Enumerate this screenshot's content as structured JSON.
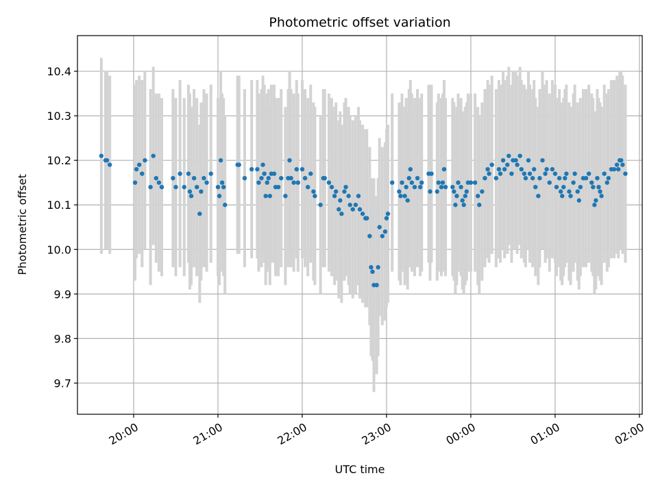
{
  "chart_data": {
    "type": "scatter",
    "title": "Photometric offset variation",
    "xlabel": "UTC time",
    "ylabel": "Photometric offset",
    "grid": true,
    "legend": "none",
    "x_start": "19:20",
    "x_end": "02:02",
    "ylim": [
      9.63,
      10.48
    ],
    "x_ticks": [
      "20:00",
      "21:00",
      "22:00",
      "23:00",
      "00:00",
      "01:00",
      "02:00"
    ],
    "y_ticks": [
      9.7,
      9.8,
      9.9,
      10.0,
      10.1,
      10.2,
      10.3,
      10.4
    ],
    "colors": {
      "points": "#1f77b4",
      "error_bars": "#d3d3d3",
      "grid": "#b0b0b0"
    },
    "points": [
      [
        "19:37",
        10.21,
        0.22
      ],
      [
        "19:40",
        10.2,
        0.2
      ],
      [
        "19:41",
        10.2,
        0.2
      ],
      [
        "19:43",
        10.19,
        0.2
      ],
      [
        "20:01",
        10.15,
        0.22
      ],
      [
        "20:02",
        10.18,
        0.2
      ],
      [
        "20:04",
        10.19,
        0.2
      ],
      [
        "20:06",
        10.17,
        0.21
      ],
      [
        "20:08",
        10.2,
        0.2
      ],
      [
        "20:12",
        10.14,
        0.22
      ],
      [
        "20:14",
        10.21,
        0.2
      ],
      [
        "20:16",
        10.16,
        0.19
      ],
      [
        "20:18",
        10.15,
        0.2
      ],
      [
        "20:20",
        10.14,
        0.2
      ],
      [
        "20:28",
        10.16,
        0.2
      ],
      [
        "20:30",
        10.14,
        0.2
      ],
      [
        "20:33",
        10.17,
        0.21
      ],
      [
        "20:36",
        10.14,
        0.2
      ],
      [
        "20:39",
        10.17,
        0.2
      ],
      [
        "20:40",
        10.13,
        0.22
      ],
      [
        "20:41",
        10.12,
        0.2
      ],
      [
        "20:43",
        10.16,
        0.2
      ],
      [
        "20:45",
        10.14,
        0.2
      ],
      [
        "20:47",
        10.08,
        0.2
      ],
      [
        "20:48",
        10.13,
        0.2
      ],
      [
        "20:50",
        10.16,
        0.2
      ],
      [
        "20:52",
        10.15,
        0.2
      ],
      [
        "20:55",
        10.17,
        0.2
      ],
      [
        "21:00",
        10.14,
        0.2
      ],
      [
        "21:01",
        10.12,
        0.2
      ],
      [
        "21:02",
        10.2,
        0.2
      ],
      [
        "21:03",
        10.15,
        0.2
      ],
      [
        "21:04",
        10.14,
        0.2
      ],
      [
        "21:05",
        10.1,
        0.2
      ],
      [
        "21:14",
        10.19,
        0.2
      ],
      [
        "21:15",
        10.19,
        0.2
      ],
      [
        "21:19",
        10.16,
        0.2
      ],
      [
        "21:24",
        10.18,
        0.2
      ],
      [
        "21:28",
        10.18,
        0.2
      ],
      [
        "21:29",
        10.15,
        0.2
      ],
      [
        "21:31",
        10.16,
        0.2
      ],
      [
        "21:32",
        10.19,
        0.2
      ],
      [
        "21:33",
        10.17,
        0.2
      ],
      [
        "21:34",
        10.12,
        0.2
      ],
      [
        "21:35",
        10.15,
        0.2
      ],
      [
        "21:36",
        10.16,
        0.2
      ],
      [
        "21:37",
        10.12,
        0.2
      ],
      [
        "21:38",
        10.17,
        0.2
      ],
      [
        "21:40",
        10.17,
        0.2
      ],
      [
        "21:41",
        10.14,
        0.2
      ],
      [
        "21:43",
        10.14,
        0.2
      ],
      [
        "21:45",
        10.16,
        0.2
      ],
      [
        "21:48",
        10.12,
        0.2
      ],
      [
        "21:50",
        10.16,
        0.2
      ],
      [
        "21:51",
        10.2,
        0.2
      ],
      [
        "21:52",
        10.16,
        0.2
      ],
      [
        "21:54",
        10.15,
        0.2
      ],
      [
        "21:56",
        10.18,
        0.2
      ],
      [
        "21:57",
        10.15,
        0.2
      ],
      [
        "22:00",
        10.18,
        0.2
      ],
      [
        "22:02",
        10.16,
        0.2
      ],
      [
        "22:04",
        10.14,
        0.2
      ],
      [
        "22:06",
        10.17,
        0.2
      ],
      [
        "22:08",
        10.13,
        0.2
      ],
      [
        "22:09",
        10.12,
        0.2
      ],
      [
        "22:13",
        10.1,
        0.2
      ],
      [
        "22:15",
        10.16,
        0.2
      ],
      [
        "22:16",
        10.16,
        0.2
      ],
      [
        "22:19",
        10.15,
        0.2
      ],
      [
        "22:21",
        10.14,
        0.2
      ],
      [
        "22:23",
        10.12,
        0.2
      ],
      [
        "22:24",
        10.13,
        0.2
      ],
      [
        "22:26",
        10.09,
        0.2
      ],
      [
        "22:27",
        10.11,
        0.2
      ],
      [
        "22:28",
        10.08,
        0.2
      ],
      [
        "22:30",
        10.13,
        0.2
      ],
      [
        "22:31",
        10.14,
        0.2
      ],
      [
        "22:33",
        10.12,
        0.2
      ],
      [
        "22:34",
        10.1,
        0.2
      ],
      [
        "22:36",
        10.09,
        0.2
      ],
      [
        "22:38",
        10.1,
        0.2
      ],
      [
        "22:40",
        10.12,
        0.2
      ],
      [
        "22:41",
        10.09,
        0.2
      ],
      [
        "22:43",
        10.08,
        0.2
      ],
      [
        "22:45",
        10.07,
        0.2
      ],
      [
        "22:46",
        10.07,
        0.2
      ],
      [
        "22:48",
        10.03,
        0.2
      ],
      [
        "22:49",
        9.96,
        0.2
      ],
      [
        "22:50",
        9.95,
        0.2
      ],
      [
        "22:51",
        9.92,
        0.24
      ],
      [
        "22:53",
        9.92,
        0.2
      ],
      [
        "22:54",
        9.96,
        0.2
      ],
      [
        "22:55",
        10.05,
        0.2
      ],
      [
        "22:57",
        10.03,
        0.2
      ],
      [
        "22:59",
        10.04,
        0.2
      ],
      [
        "23:00",
        10.07,
        0.2
      ],
      [
        "23:01",
        10.08,
        0.2
      ],
      [
        "23:04",
        10.15,
        0.2
      ],
      [
        "23:09",
        10.13,
        0.2
      ],
      [
        "23:10",
        10.12,
        0.2
      ],
      [
        "23:11",
        10.15,
        0.2
      ],
      [
        "23:13",
        10.12,
        0.2
      ],
      [
        "23:14",
        10.14,
        0.2
      ],
      [
        "23:15",
        10.11,
        0.2
      ],
      [
        "23:16",
        10.16,
        0.2
      ],
      [
        "23:17",
        10.18,
        0.2
      ],
      [
        "23:18",
        10.15,
        0.2
      ],
      [
        "23:20",
        10.14,
        0.2
      ],
      [
        "23:22",
        10.16,
        0.2
      ],
      [
        "23:24",
        10.14,
        0.2
      ],
      [
        "23:25",
        10.15,
        0.2
      ],
      [
        "23:30",
        10.17,
        0.2
      ],
      [
        "23:31",
        10.13,
        0.2
      ],
      [
        "23:32",
        10.17,
        0.2
      ],
      [
        "23:36",
        10.13,
        0.2
      ],
      [
        "23:37",
        10.15,
        0.2
      ],
      [
        "23:39",
        10.14,
        0.2
      ],
      [
        "23:40",
        10.15,
        0.2
      ],
      [
        "23:41",
        10.18,
        0.2
      ],
      [
        "23:42",
        10.14,
        0.2
      ],
      [
        "23:47",
        10.14,
        0.2
      ],
      [
        "23:48",
        10.13,
        0.2
      ],
      [
        "23:49",
        10.1,
        0.2
      ],
      [
        "23:50",
        10.12,
        0.2
      ],
      [
        "23:51",
        10.15,
        0.2
      ],
      [
        "23:53",
        10.14,
        0.2
      ],
      [
        "23:54",
        10.11,
        0.2
      ],
      [
        "23:55",
        10.1,
        0.2
      ],
      [
        "23:56",
        10.12,
        0.2
      ],
      [
        "23:57",
        10.13,
        0.2
      ],
      [
        "23:58",
        10.15,
        0.2
      ],
      [
        "00:00",
        10.15,
        0.2
      ],
      [
        "00:03",
        10.15,
        0.2
      ],
      [
        "00:05",
        10.12,
        0.2
      ],
      [
        "00:06",
        10.1,
        0.2
      ],
      [
        "00:08",
        10.13,
        0.2
      ],
      [
        "00:10",
        10.16,
        0.2
      ],
      [
        "00:12",
        10.18,
        0.2
      ],
      [
        "00:13",
        10.17,
        0.2
      ],
      [
        "00:15",
        10.19,
        0.2
      ],
      [
        "00:18",
        10.16,
        0.2
      ],
      [
        "00:20",
        10.18,
        0.2
      ],
      [
        "00:21",
        10.17,
        0.2
      ],
      [
        "00:23",
        10.2,
        0.2
      ],
      [
        "00:24",
        10.18,
        0.2
      ],
      [
        "00:26",
        10.19,
        0.2
      ],
      [
        "00:27",
        10.21,
        0.2
      ],
      [
        "00:29",
        10.17,
        0.2
      ],
      [
        "00:30",
        10.2,
        0.2
      ],
      [
        "00:32",
        10.2,
        0.2
      ],
      [
        "00:33",
        10.19,
        0.2
      ],
      [
        "00:35",
        10.21,
        0.2
      ],
      [
        "00:36",
        10.18,
        0.2
      ],
      [
        "00:38",
        10.17,
        0.2
      ],
      [
        "00:39",
        10.16,
        0.2
      ],
      [
        "00:41",
        10.2,
        0.2
      ],
      [
        "00:42",
        10.17,
        0.2
      ],
      [
        "00:44",
        10.16,
        0.2
      ],
      [
        "00:45",
        10.18,
        0.2
      ],
      [
        "00:46",
        10.14,
        0.2
      ],
      [
        "00:48",
        10.12,
        0.2
      ],
      [
        "00:49",
        10.16,
        0.2
      ],
      [
        "00:51",
        10.2,
        0.2
      ],
      [
        "00:53",
        10.17,
        0.2
      ],
      [
        "00:54",
        10.18,
        0.2
      ],
      [
        "00:56",
        10.15,
        0.2
      ],
      [
        "00:58",
        10.18,
        0.2
      ],
      [
        "01:00",
        10.17,
        0.2
      ],
      [
        "01:01",
        10.14,
        0.2
      ],
      [
        "01:03",
        10.16,
        0.2
      ],
      [
        "01:04",
        10.13,
        0.2
      ],
      [
        "01:05",
        10.12,
        0.2
      ],
      [
        "01:06",
        10.14,
        0.2
      ],
      [
        "01:07",
        10.16,
        0.2
      ],
      [
        "01:08",
        10.17,
        0.2
      ],
      [
        "01:10",
        10.13,
        0.2
      ],
      [
        "01:11",
        10.12,
        0.2
      ],
      [
        "01:13",
        10.15,
        0.2
      ],
      [
        "01:14",
        10.17,
        0.2
      ],
      [
        "01:16",
        10.13,
        0.2
      ],
      [
        "01:17",
        10.11,
        0.2
      ],
      [
        "01:18",
        10.14,
        0.2
      ],
      [
        "01:20",
        10.16,
        0.2
      ],
      [
        "01:22",
        10.16,
        0.2
      ],
      [
        "01:24",
        10.17,
        0.2
      ],
      [
        "01:26",
        10.15,
        0.2
      ],
      [
        "01:27",
        10.14,
        0.2
      ],
      [
        "01:28",
        10.1,
        0.2
      ],
      [
        "01:29",
        10.11,
        0.2
      ],
      [
        "01:30",
        10.16,
        0.2
      ],
      [
        "01:31",
        10.14,
        0.2
      ],
      [
        "01:32",
        10.13,
        0.2
      ],
      [
        "01:33",
        10.12,
        0.2
      ],
      [
        "01:35",
        10.17,
        0.2
      ],
      [
        "01:37",
        10.15,
        0.2
      ],
      [
        "01:38",
        10.16,
        0.2
      ],
      [
        "01:40",
        10.18,
        0.2
      ],
      [
        "01:42",
        10.18,
        0.2
      ],
      [
        "01:44",
        10.19,
        0.2
      ],
      [
        "01:45",
        10.18,
        0.2
      ],
      [
        "01:46",
        10.2,
        0.2
      ],
      [
        "01:47",
        10.2,
        0.2
      ],
      [
        "01:48",
        10.19,
        0.2
      ],
      [
        "01:50",
        10.17,
        0.2
      ]
    ]
  }
}
